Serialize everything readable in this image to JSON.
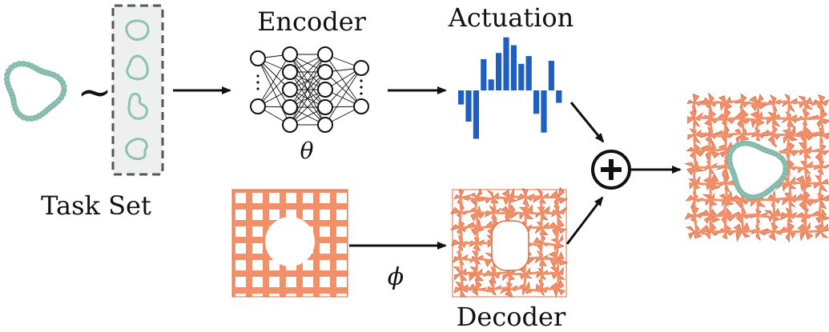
{
  "labels": {
    "task_set": "Task Set",
    "tilde": "~",
    "encoder": "Encoder",
    "theta": "θ",
    "actuation": "Actuation",
    "phi": "ϕ",
    "decoder": "Decoder",
    "plus": "+"
  },
  "colors": {
    "teal": "#8cc1b3",
    "teal_dark": "#6ea899",
    "blue": "#1f5fbf",
    "orange": "#f2906a",
    "orange_dark": "#d86d48",
    "dashed_box_fill": "#eef0f0",
    "dashed_box_stroke": "#555555"
  },
  "actuation_values": [
    -0.45,
    -1.0,
    -1.55,
    1.0,
    0.35,
    1.2,
    1.7,
    1.45,
    0.85,
    1.1,
    -0.75,
    -1.35,
    0.95,
    -0.4
  ]
}
